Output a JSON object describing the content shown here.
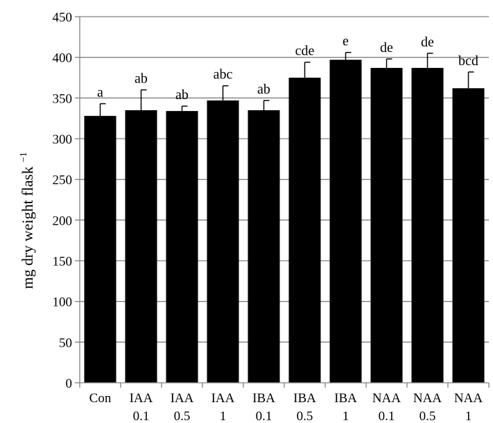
{
  "chart_data": {
    "type": "bar",
    "categories": [
      {
        "line1": "Con",
        "line2": ""
      },
      {
        "line1": "IAA",
        "line2": "0.1"
      },
      {
        "line1": "IAA",
        "line2": "0.5"
      },
      {
        "line1": "IAA",
        "line2": "1"
      },
      {
        "line1": "IBA",
        "line2": "0.1"
      },
      {
        "line1": "IBA",
        "line2": "0.5"
      },
      {
        "line1": "IBA",
        "line2": "1"
      },
      {
        "line1": "NAA",
        "line2": "0.1"
      },
      {
        "line1": "NAA",
        "line2": "0.5"
      },
      {
        "line1": "NAA",
        "line2": "1"
      }
    ],
    "values": [
      328,
      335,
      334,
      347,
      335,
      375,
      397,
      387,
      387,
      362
    ],
    "errors": [
      15,
      25,
      6,
      18,
      12,
      19,
      9,
      11,
      18,
      20
    ],
    "significance": [
      "a",
      "ab",
      "ab",
      "abc",
      "ab",
      "cde",
      "e",
      "de",
      "de",
      "bcd"
    ],
    "ylabel": "mg dry weight flask",
    "ylabel_superscript": "−1",
    "ylim": [
      0,
      450
    ],
    "yticks": [
      0,
      50,
      100,
      150,
      200,
      250,
      300,
      350,
      400,
      450
    ],
    "grid": true,
    "bar_color": "#000000",
    "grid_color": "#808080"
  }
}
